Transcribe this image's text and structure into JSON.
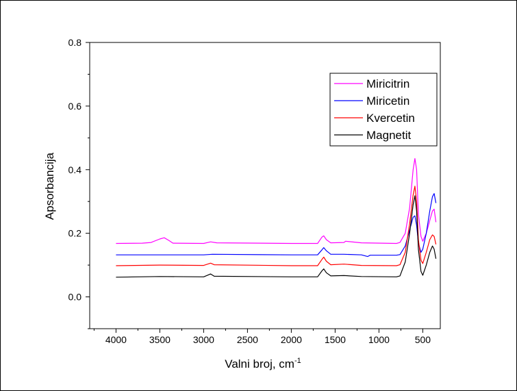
{
  "chart_data": {
    "type": "line",
    "xlabel": "Valni broj, cm",
    "xlabel_sup": "-1",
    "ylabel": "Apsorbancija",
    "xlim": [
      4300,
      300
    ],
    "ylim": [
      -0.1,
      0.8
    ],
    "x_ticks": [
      "4000",
      "3500",
      "3000",
      "2500",
      "2000",
      "1500",
      "1000",
      "500"
    ],
    "y_ticks": [
      "0.0",
      "0.2",
      "0.4",
      "0.6",
      "0.8"
    ],
    "grid": false,
    "legend_position": "top-right",
    "series": [
      {
        "name": "Miricitrin",
        "color": "#ff00ff",
        "points": [
          [
            4000,
            0.168
          ],
          [
            3700,
            0.169
          ],
          [
            3600,
            0.171
          ],
          [
            3500,
            0.182
          ],
          [
            3450,
            0.186
          ],
          [
            3400,
            0.178
          ],
          [
            3350,
            0.169
          ],
          [
            3000,
            0.168
          ],
          [
            2920,
            0.173
          ],
          [
            2850,
            0.17
          ],
          [
            2000,
            0.168
          ],
          [
            1700,
            0.168
          ],
          [
            1650,
            0.188
          ],
          [
            1630,
            0.192
          ],
          [
            1600,
            0.18
          ],
          [
            1550,
            0.17
          ],
          [
            1400,
            0.171
          ],
          [
            1380,
            0.175
          ],
          [
            1200,
            0.17
          ],
          [
            800,
            0.168
          ],
          [
            760,
            0.171
          ],
          [
            700,
            0.2
          ],
          [
            650,
            0.28
          ],
          [
            610,
            0.4
          ],
          [
            590,
            0.435
          ],
          [
            570,
            0.4
          ],
          [
            550,
            0.26
          ],
          [
            520,
            0.19
          ],
          [
            500,
            0.175
          ],
          [
            460,
            0.2
          ],
          [
            420,
            0.24
          ],
          [
            390,
            0.27
          ],
          [
            370,
            0.276
          ],
          [
            350,
            0.235
          ]
        ]
      },
      {
        "name": "Miricetin",
        "color": "#0000ff",
        "points": [
          [
            4000,
            0.132
          ],
          [
            3000,
            0.132
          ],
          [
            2900,
            0.134
          ],
          [
            2000,
            0.132
          ],
          [
            1700,
            0.132
          ],
          [
            1650,
            0.148
          ],
          [
            1630,
            0.155
          ],
          [
            1600,
            0.145
          ],
          [
            1550,
            0.134
          ],
          [
            1400,
            0.134
          ],
          [
            1200,
            0.132
          ],
          [
            1130,
            0.127
          ],
          [
            1100,
            0.131
          ],
          [
            800,
            0.131
          ],
          [
            760,
            0.133
          ],
          [
            700,
            0.16
          ],
          [
            650,
            0.21
          ],
          [
            610,
            0.25
          ],
          [
            590,
            0.255
          ],
          [
            570,
            0.225
          ],
          [
            550,
            0.17
          ],
          [
            520,
            0.14
          ],
          [
            500,
            0.15
          ],
          [
            460,
            0.2
          ],
          [
            420,
            0.27
          ],
          [
            390,
            0.315
          ],
          [
            370,
            0.325
          ],
          [
            350,
            0.295
          ]
        ]
      },
      {
        "name": "Kvercetin",
        "color": "#ff0000",
        "points": [
          [
            4000,
            0.098
          ],
          [
            3500,
            0.1
          ],
          [
            3000,
            0.099
          ],
          [
            2920,
            0.106
          ],
          [
            2880,
            0.101
          ],
          [
            2000,
            0.098
          ],
          [
            1700,
            0.098
          ],
          [
            1650,
            0.118
          ],
          [
            1630,
            0.125
          ],
          [
            1600,
            0.112
          ],
          [
            1550,
            0.101
          ],
          [
            1400,
            0.103
          ],
          [
            1200,
            0.099
          ],
          [
            800,
            0.098
          ],
          [
            760,
            0.101
          ],
          [
            700,
            0.14
          ],
          [
            650,
            0.23
          ],
          [
            610,
            0.32
          ],
          [
            590,
            0.348
          ],
          [
            570,
            0.3
          ],
          [
            550,
            0.18
          ],
          [
            520,
            0.115
          ],
          [
            500,
            0.105
          ],
          [
            460,
            0.14
          ],
          [
            420,
            0.18
          ],
          [
            390,
            0.195
          ],
          [
            370,
            0.19
          ],
          [
            350,
            0.165
          ]
        ]
      },
      {
        "name": "Magnetit",
        "color": "#000000",
        "points": [
          [
            4000,
            0.062
          ],
          [
            3500,
            0.064
          ],
          [
            3000,
            0.063
          ],
          [
            2920,
            0.072
          ],
          [
            2880,
            0.065
          ],
          [
            2000,
            0.063
          ],
          [
            1700,
            0.063
          ],
          [
            1650,
            0.082
          ],
          [
            1630,
            0.088
          ],
          [
            1600,
            0.076
          ],
          [
            1550,
            0.066
          ],
          [
            1400,
            0.067
          ],
          [
            1200,
            0.064
          ],
          [
            800,
            0.063
          ],
          [
            760,
            0.066
          ],
          [
            700,
            0.11
          ],
          [
            650,
            0.2
          ],
          [
            610,
            0.29
          ],
          [
            590,
            0.318
          ],
          [
            570,
            0.27
          ],
          [
            550,
            0.15
          ],
          [
            520,
            0.08
          ],
          [
            500,
            0.068
          ],
          [
            460,
            0.1
          ],
          [
            420,
            0.14
          ],
          [
            390,
            0.16
          ],
          [
            370,
            0.15
          ],
          [
            350,
            0.12
          ]
        ]
      }
    ]
  }
}
